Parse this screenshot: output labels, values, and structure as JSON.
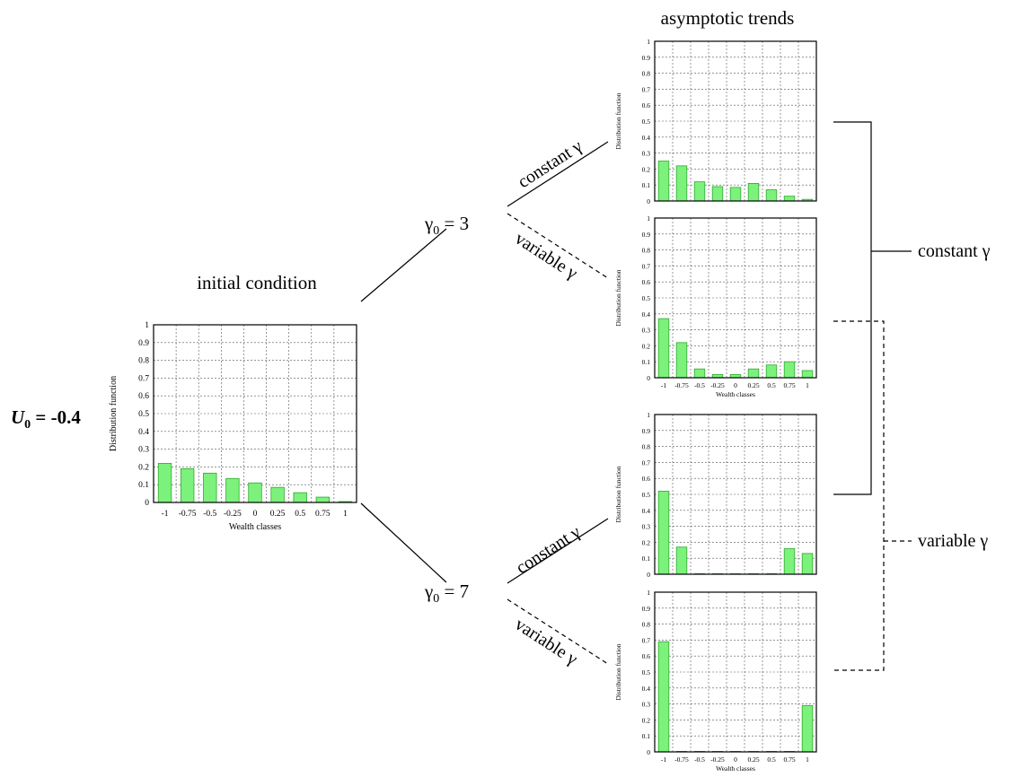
{
  "diagram": {
    "u0_label": {
      "symbol": "U",
      "sub": "0",
      "rest": " = -0.4"
    },
    "initial_title": "initial condition",
    "asymptotic_title": "asymptotic trends",
    "gamma0_3": {
      "symbol": "γ",
      "sub": "0",
      "rest": " = 3"
    },
    "gamma0_7": {
      "symbol": "γ",
      "sub": "0",
      "rest": " = 7"
    },
    "branch_constant": "constant γ",
    "branch_variable": "variable γ",
    "legend_constant": "constant γ",
    "legend_variable": "variable γ"
  },
  "chart_data": [
    {
      "id": "initial",
      "type": "bar",
      "xlabel": "Wealth classes",
      "ylabel": "Distribution function",
      "categories": [
        "-1",
        "-0.75",
        "-0.5",
        "-0.25",
        "0",
        "0.25",
        "0.5",
        "0.75",
        "1"
      ],
      "values": [
        0.22,
        0.19,
        0.165,
        0.135,
        0.11,
        0.085,
        0.055,
        0.03,
        0.005
      ],
      "ylim": [
        0,
        1
      ],
      "yticks": [
        "0",
        "0.1",
        "0.2",
        "0.3",
        "0.4",
        "0.5",
        "0.6",
        "0.7",
        "0.8",
        "0.9",
        "1"
      ],
      "grid": true
    },
    {
      "id": "g3-constant",
      "type": "bar",
      "xlabel": "",
      "ylabel": "Distribution function",
      "categories": [
        "-1",
        "-0.75",
        "-0.5",
        "-0.25",
        "0",
        "0.25",
        "0.5",
        "0.75",
        "1"
      ],
      "show_xticks": false,
      "values": [
        0.25,
        0.22,
        0.12,
        0.09,
        0.085,
        0.11,
        0.07,
        0.03,
        0.01
      ],
      "ylim": [
        0,
        1
      ],
      "yticks": [
        "0",
        "0.1",
        "0.2",
        "0.3",
        "0.4",
        "0.5",
        "0.6",
        "0.7",
        "0.8",
        "0.9",
        "1"
      ],
      "grid": true
    },
    {
      "id": "g3-variable",
      "type": "bar",
      "xlabel": "Wealth classes",
      "ylabel": "Distribution function",
      "categories": [
        "-1",
        "-0.75",
        "-0.5",
        "-0.25",
        "0",
        "0.25",
        "0.5",
        "0.75",
        "1"
      ],
      "show_xticks": true,
      "values": [
        0.37,
        0.22,
        0.055,
        0.02,
        0.02,
        0.055,
        0.08,
        0.1,
        0.045
      ],
      "ylim": [
        0,
        1
      ],
      "yticks": [
        "0",
        "0.1",
        "0.2",
        "0.3",
        "0.4",
        "0.5",
        "0.6",
        "0.7",
        "0.8",
        "0.9",
        "1"
      ],
      "grid": true
    },
    {
      "id": "g7-constant",
      "type": "bar",
      "xlabel": "",
      "ylabel": "Distribution function",
      "categories": [
        "-1",
        "-0.75",
        "-0.5",
        "-0.25",
        "0",
        "0.25",
        "0.5",
        "0.75",
        "1"
      ],
      "show_xticks": false,
      "values": [
        0.52,
        0.17,
        0,
        0,
        0,
        0,
        0,
        0.16,
        0.13
      ],
      "ylim": [
        0,
        1
      ],
      "yticks": [
        "0",
        "0.1",
        "0.2",
        "0.3",
        "0.4",
        "0.5",
        "0.6",
        "0.7",
        "0.8",
        "0.9",
        "1"
      ],
      "grid": true
    },
    {
      "id": "g7-variable",
      "type": "bar",
      "xlabel": "Wealth classes",
      "ylabel": "Distribution function",
      "categories": [
        "-1",
        "-0.75",
        "-0.5",
        "-0.25",
        "0",
        "0.25",
        "0.5",
        "0.75",
        "1"
      ],
      "show_xticks": true,
      "values": [
        0.69,
        0,
        0.003,
        0.003,
        0.003,
        0.003,
        0.003,
        0.003,
        0.29
      ],
      "ylim": [
        0,
        1
      ],
      "yticks": [
        "0",
        "0.1",
        "0.2",
        "0.3",
        "0.4",
        "0.5",
        "0.6",
        "0.7",
        "0.8",
        "0.9",
        "1"
      ],
      "grid": true
    }
  ]
}
